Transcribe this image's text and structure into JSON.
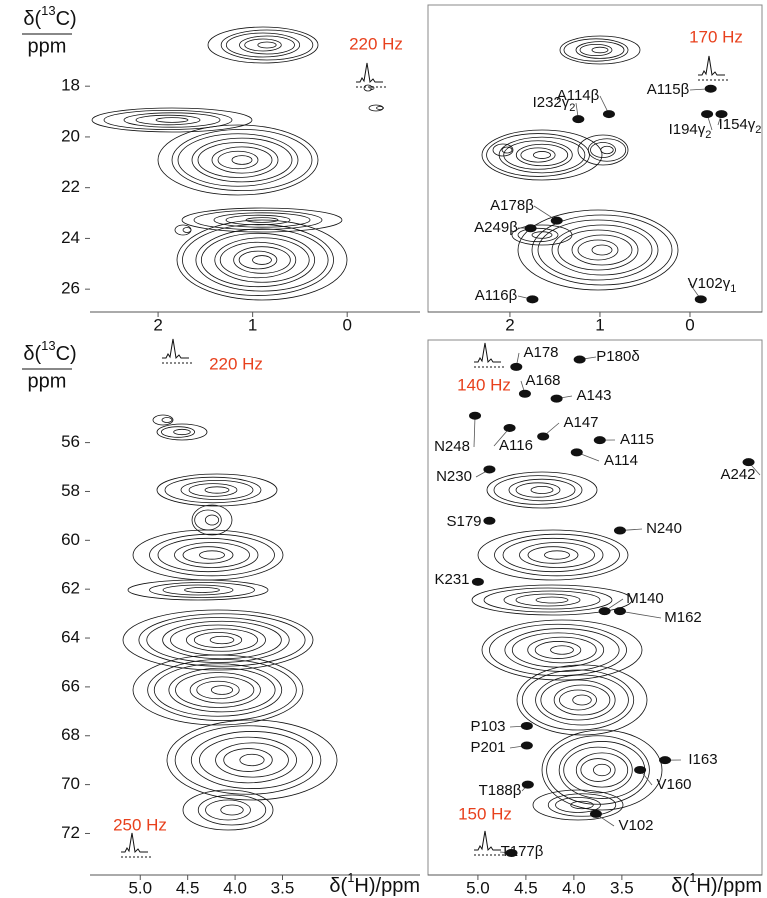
{
  "chart_data": [
    {
      "type": "contour",
      "xlim": [
        2.72,
        -0.77
      ],
      "ylim": [
        14.8,
        26.9
      ],
      "xticks": [
        2,
        1,
        0
      ],
      "yticks": [
        18,
        20,
        22,
        24,
        26
      ],
      "ylabel": {
        "prefix": "δ(",
        "sup": "13",
        "suffix": "C)",
        "unit": "ppm"
      },
      "notes": [
        "220 Hz"
      ]
    },
    {
      "type": "contour",
      "xlim": [
        2.91,
        -0.8
      ],
      "ylim": [
        14.8,
        26.9
      ],
      "xticks": [
        2,
        1,
        0
      ],
      "notes": [
        "170 Hz"
      ],
      "peaks": [
        {
          "label": "A115β",
          "x": -0.23,
          "y": 18.1
        },
        {
          "label": "I154γ",
          "sub": "2",
          "x": -0.35,
          "y": 19.1
        },
        {
          "label": "I194γ",
          "sub": "2",
          "x": -0.19,
          "y": 19.1
        },
        {
          "label": "A114β",
          "x": 0.9,
          "y": 19.1
        },
        {
          "label": "I232γ",
          "sub": "2",
          "x": 1.24,
          "y": 19.3
        },
        {
          "label": "A178β",
          "x": 1.48,
          "y": 23.3
        },
        {
          "label": "A249β",
          "x": 1.77,
          "y": 23.6
        },
        {
          "label": "A116β",
          "x": 1.75,
          "y": 26.4
        },
        {
          "label": "V102γ",
          "sub": "1",
          "x": -0.12,
          "y": 26.4
        }
      ]
    },
    {
      "type": "contour",
      "xlim": [
        5.53,
        2.05
      ],
      "ylim": [
        51.8,
        73.7
      ],
      "xticks": [
        {
          "value": 5,
          "label": "5.0"
        },
        4.5,
        {
          "value": 4,
          "label": "4.0"
        },
        3.5
      ],
      "yticks": [
        56,
        58,
        60,
        62,
        64,
        66,
        68,
        70,
        72
      ],
      "ylabel": {
        "prefix": "δ(",
        "sup": "13",
        "suffix": "C)",
        "unit": "ppm"
      },
      "xlabel": {
        "prefix": "δ(",
        "sup": "1",
        "suffix": "H)/ppm"
      },
      "notes": [
        "220 Hz",
        "250 Hz"
      ]
    },
    {
      "type": "contour",
      "xlim": [
        5.52,
        2.04
      ],
      "ylim": [
        51.8,
        73.7
      ],
      "xticks": [
        {
          "value": 5,
          "label": "5.0"
        },
        4.5,
        {
          "value": 4,
          "label": "4.0"
        },
        3.5
      ],
      "xlabel": {
        "prefix": "δ(",
        "sup": "1",
        "suffix": "H)/ppm"
      },
      "notes": [
        "140 Hz",
        "150 Hz"
      ],
      "peaks": [
        {
          "label": "A178",
          "x": 4.6,
          "y": 52.9
        },
        {
          "label": "P180δ",
          "x": 3.94,
          "y": 52.6
        },
        {
          "label": "A168",
          "x": 4.51,
          "y": 54.0
        },
        {
          "label": "A143",
          "x": 4.18,
          "y": 54.2
        },
        {
          "label": "A147",
          "x": 4.32,
          "y": 55.75
        },
        {
          "label": "A116",
          "x": 4.67,
          "y": 55.4
        },
        {
          "label": "N248",
          "x": 5.03,
          "y": 54.9
        },
        {
          "label": "A115",
          "x": 3.73,
          "y": 55.9
        },
        {
          "label": "A114",
          "x": 3.97,
          "y": 56.4
        },
        {
          "label": "A242",
          "x": 2.18,
          "y": 56.8
        },
        {
          "label": "N230",
          "x": 4.88,
          "y": 57.1
        },
        {
          "label": "S179",
          "x": 4.88,
          "y": 59.2
        },
        {
          "label": "N240",
          "x": 3.52,
          "y": 59.6
        },
        {
          "label": "K231",
          "x": 5.0,
          "y": 61.7
        },
        {
          "label": "M140",
          "x": 3.68,
          "y": 62.9
        },
        {
          "label": "M162",
          "x": 3.52,
          "y": 62.9
        },
        {
          "label": "P103",
          "x": 4.49,
          "y": 67.6
        },
        {
          "label": "P201",
          "x": 4.49,
          "y": 68.4
        },
        {
          "label": "I163",
          "x": 3.05,
          "y": 69.0
        },
        {
          "label": "V160",
          "x": 3.31,
          "y": 69.4
        },
        {
          "label": "T188β",
          "x": 4.48,
          "y": 70.0
        },
        {
          "label": "V102",
          "x": 3.77,
          "y": 71.2
        },
        {
          "label": "T177β",
          "x": 4.65,
          "y": 72.8
        }
      ]
    }
  ]
}
